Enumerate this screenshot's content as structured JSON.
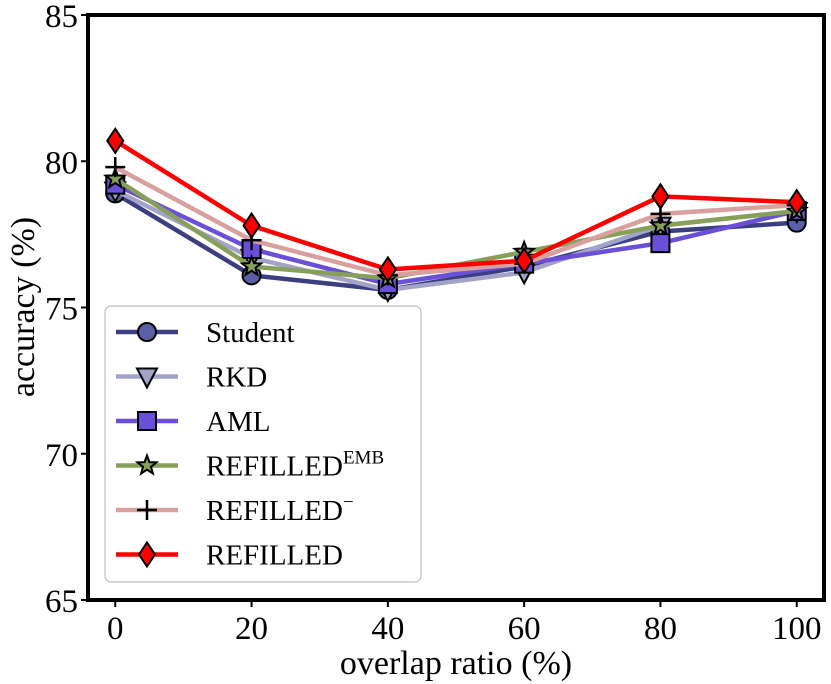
{
  "chart_data": {
    "type": "line",
    "xlabel": "overlap ratio (%)",
    "ylabel": "accuracy (%)",
    "x": [
      0,
      20,
      40,
      60,
      80,
      100
    ],
    "x_tick_labels": [
      "0",
      "20",
      "40",
      "60",
      "80",
      "100"
    ],
    "xlim": [
      -4,
      104
    ],
    "ylim": [
      65,
      85
    ],
    "y_ticks": [
      65,
      70,
      75,
      80,
      85
    ],
    "y_tick_labels": [
      "65",
      "70",
      "75",
      "80",
      "85"
    ],
    "grid": false,
    "legend_position": "lower-left",
    "series": [
      {
        "name": "Student",
        "sup": "",
        "color": "#3b3f82",
        "marker": "circle",
        "marker_fill": "#5a5fa8",
        "values": [
          78.9,
          76.1,
          75.6,
          76.4,
          77.6,
          77.9
        ]
      },
      {
        "name": "RKD",
        "sup": "",
        "color": "#a3a3c8",
        "marker": "triangle-down",
        "marker_fill": "#a3a3c8",
        "values": [
          79.0,
          76.7,
          75.6,
          76.2,
          77.8,
          78.3
        ]
      },
      {
        "name": "AML",
        "sup": "",
        "color": "#6a4fd8",
        "marker": "square",
        "marker_fill": "#6a4fd8",
        "values": [
          79.2,
          77.0,
          75.8,
          76.5,
          77.2,
          78.3
        ]
      },
      {
        "name": "REFILLED",
        "sup": "EMB",
        "color": "#86a05a",
        "marker": "star",
        "marker_fill": "#86a05a",
        "values": [
          79.4,
          76.4,
          76.0,
          76.9,
          77.8,
          78.3
        ]
      },
      {
        "name": "REFILLED",
        "sup": "−",
        "color": "#d9a0a0",
        "marker": "plus",
        "marker_fill": "#000000",
        "values": [
          79.8,
          77.3,
          76.1,
          76.5,
          78.2,
          78.5
        ]
      },
      {
        "name": "REFILLED",
        "sup": "",
        "color": "#ff0000",
        "marker": "diamond",
        "marker_fill": "#ff0000",
        "values": [
          80.7,
          77.8,
          76.3,
          76.6,
          78.8,
          78.6
        ]
      }
    ]
  }
}
